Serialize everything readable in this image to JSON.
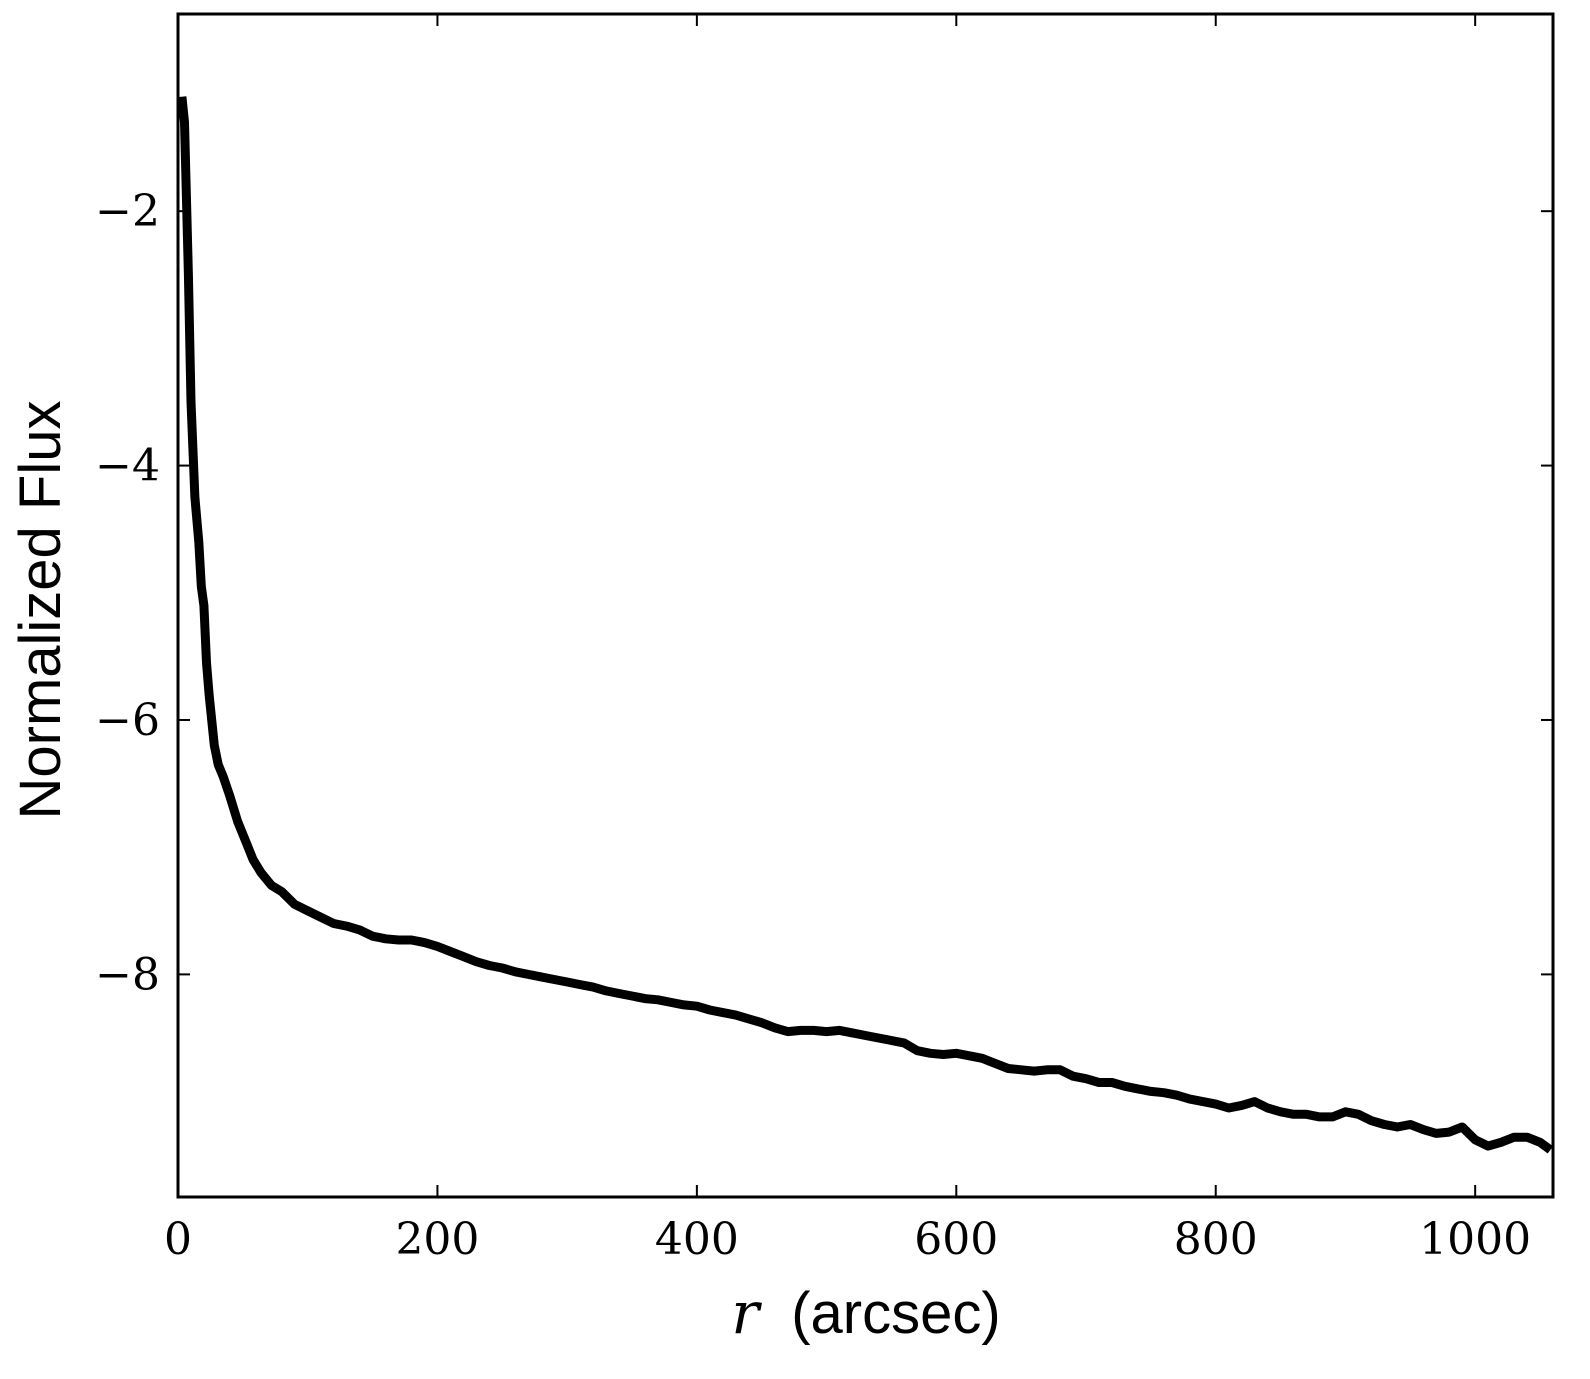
{
  "chart_data": {
    "type": "line",
    "title": "",
    "xlabel": {
      "variable": "r",
      "unit": "(arcsec)"
    },
    "ylabel": "Normalized Flux",
    "xlim": [
      0,
      1060
    ],
    "ylim": [
      -9.75,
      -0.45
    ],
    "x_ticks": [
      0,
      200,
      400,
      600,
      800,
      1000
    ],
    "x_tick_labels": [
      "0",
      "200",
      "400",
      "600",
      "800",
      "1000"
    ],
    "y_ticks": [
      -2,
      -4,
      -6,
      -8
    ],
    "y_tick_labels": [
      "−2",
      "−4",
      "−6",
      "−8"
    ],
    "grid": false,
    "legend": "none",
    "line_color": "#000000",
    "series": [
      {
        "x": [
          3,
          5,
          8,
          10,
          13,
          16,
          18,
          20,
          22,
          24,
          26,
          28,
          31,
          35,
          40,
          46,
          52,
          58,
          64,
          72,
          80,
          90,
          100,
          110,
          120,
          130,
          140,
          150,
          160,
          170,
          180,
          190,
          200,
          210,
          220,
          230,
          240,
          250,
          260,
          270,
          280,
          290,
          300,
          310,
          320,
          330,
          340,
          350,
          360,
          370,
          380,
          390,
          400,
          410,
          420,
          430,
          440,
          450,
          460,
          470,
          480,
          490,
          500,
          510,
          520,
          530,
          540,
          550,
          560,
          570,
          580,
          590,
          600,
          610,
          620,
          630,
          640,
          650,
          660,
          670,
          680,
          690,
          700,
          710,
          720,
          730,
          740,
          750,
          760,
          770,
          780,
          790,
          800,
          810,
          820,
          830,
          840,
          850,
          860,
          870,
          880,
          890,
          900,
          910,
          920,
          930,
          940,
          950,
          960,
          970,
          980,
          990,
          1000,
          1010,
          1020,
          1030,
          1040,
          1050,
          1058
        ],
        "y": [
          -1.1,
          -1.3,
          -2.5,
          -3.5,
          -4.25,
          -4.6,
          -4.95,
          -5.1,
          -5.55,
          -5.8,
          -6.0,
          -6.2,
          -6.35,
          -6.45,
          -6.6,
          -6.8,
          -6.95,
          -7.1,
          -7.2,
          -7.3,
          -7.35,
          -7.45,
          -7.5,
          -7.55,
          -7.6,
          -7.62,
          -7.65,
          -7.7,
          -7.72,
          -7.73,
          -7.73,
          -7.75,
          -7.78,
          -7.82,
          -7.86,
          -7.9,
          -7.93,
          -7.95,
          -7.98,
          -8.0,
          -8.02,
          -8.04,
          -8.06,
          -8.08,
          -8.1,
          -8.13,
          -8.15,
          -8.17,
          -8.19,
          -8.2,
          -8.22,
          -8.24,
          -8.25,
          -8.28,
          -8.3,
          -8.32,
          -8.35,
          -8.38,
          -8.42,
          -8.45,
          -8.44,
          -8.44,
          -8.45,
          -8.44,
          -8.46,
          -8.48,
          -8.5,
          -8.52,
          -8.54,
          -8.6,
          -8.62,
          -8.63,
          -8.62,
          -8.64,
          -8.66,
          -8.7,
          -8.74,
          -8.75,
          -8.76,
          -8.75,
          -8.75,
          -8.8,
          -8.82,
          -8.85,
          -8.85,
          -8.88,
          -8.9,
          -8.92,
          -8.93,
          -8.95,
          -8.98,
          -9.0,
          -9.02,
          -9.05,
          -9.03,
          -9.0,
          -9.05,
          -9.08,
          -9.1,
          -9.1,
          -9.12,
          -9.12,
          -9.08,
          -9.1,
          -9.15,
          -9.18,
          -9.2,
          -9.18,
          -9.22,
          -9.25,
          -9.24,
          -9.2,
          -9.3,
          -9.35,
          -9.32,
          -9.28,
          -9.28,
          -9.32,
          -9.38
        ]
      }
    ]
  }
}
